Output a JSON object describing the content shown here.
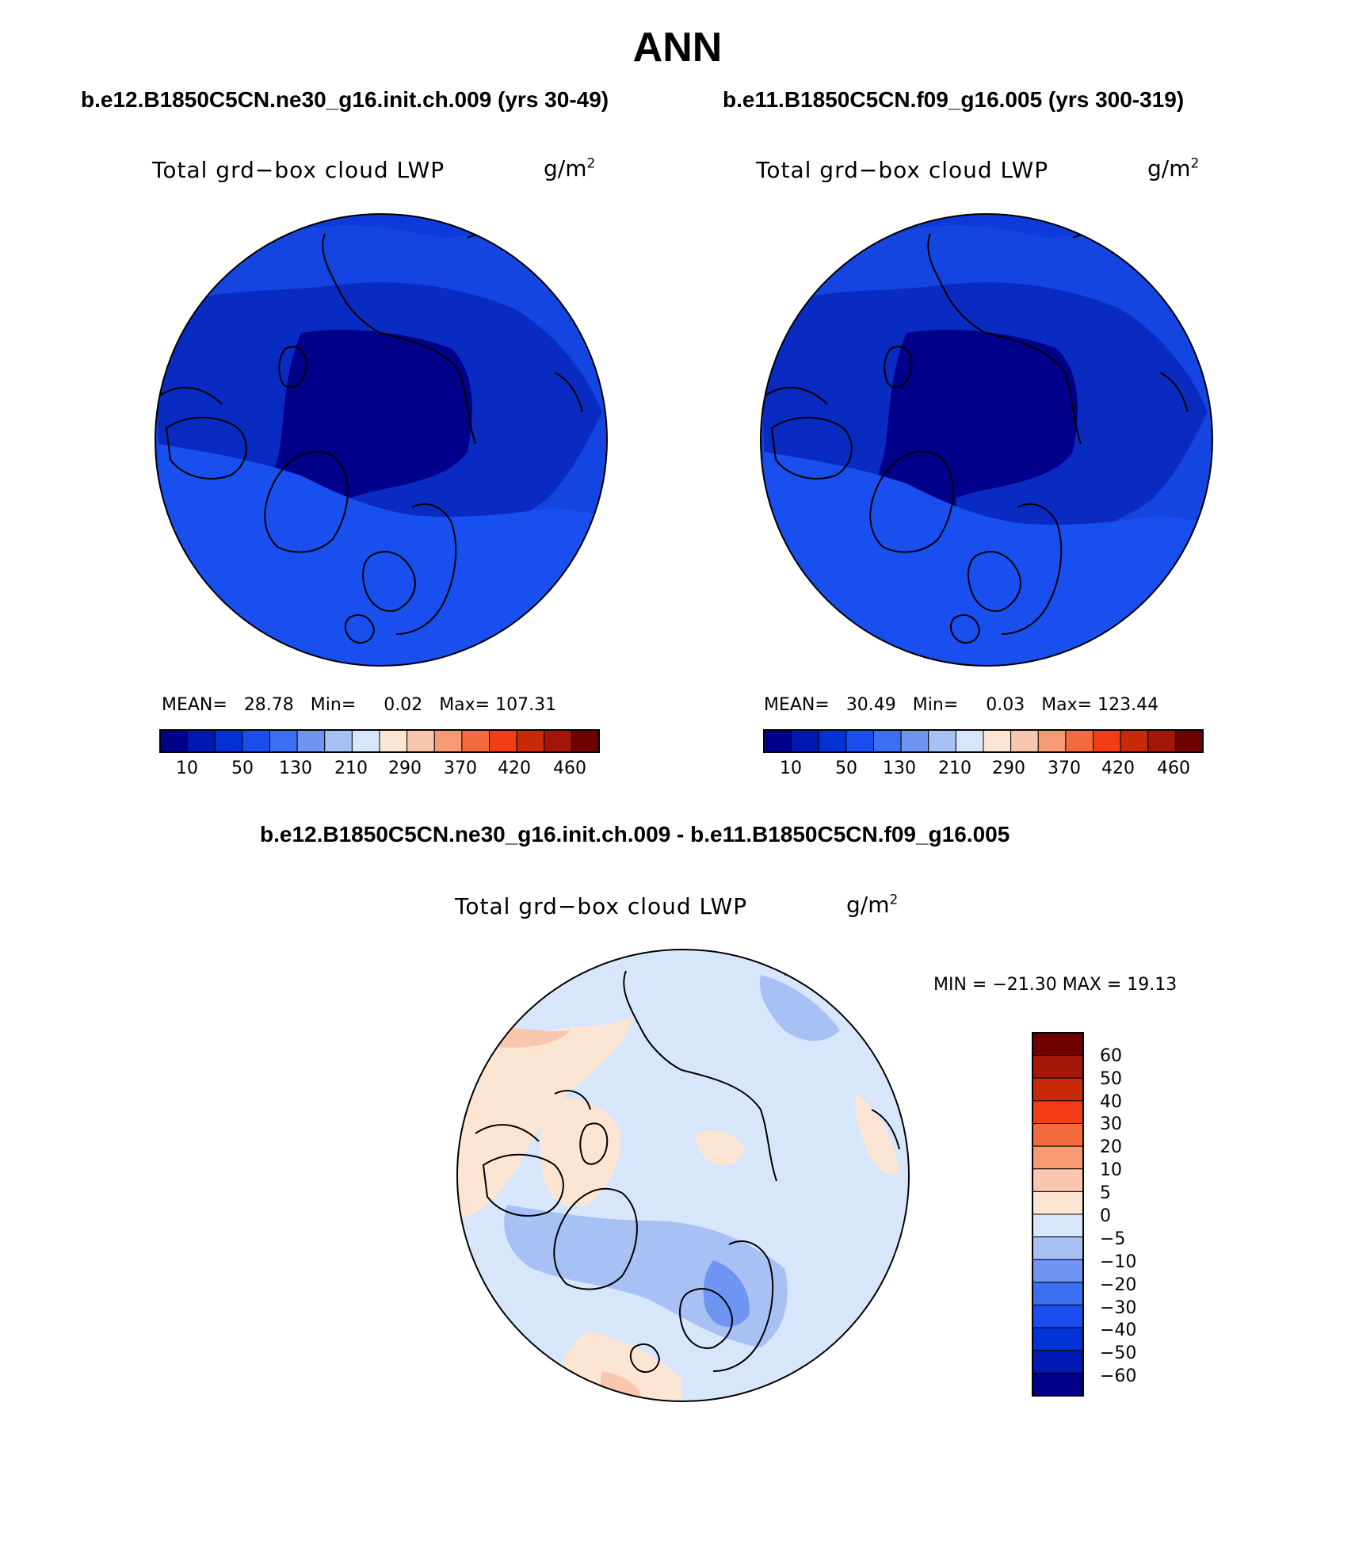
{
  "main_title": "ANN",
  "colors": {
    "land_outline": "#000000",
    "panel_a_palette": [
      "#00008a",
      "#0019b5",
      "#0032d6",
      "#1a4fef",
      "#3c6ef2",
      "#6f95f2",
      "#a8c1f5",
      "#d8e6fb",
      "#fde5d3",
      "#f9c7ad",
      "#f59a73",
      "#f46a3f",
      "#f23d16",
      "#c92a09",
      "#a31608",
      "#6e0000"
    ],
    "diff_palette": [
      "#00008a",
      "#0019b5",
      "#0032d6",
      "#1a4fef",
      "#3c6ef2",
      "#6f95f2",
      "#a8c1f5",
      "#d8e6fb",
      "#fde5d3",
      "#f9c7ad",
      "#f59a73",
      "#f46a3f",
      "#f23d16",
      "#c92a09",
      "#a31608",
      "#6e0000"
    ]
  },
  "chart_data": [
    {
      "type": "polar_map",
      "title": "b.e12.B1850C5CN.ne30_g16.init.ch.009 (yrs 30-49)",
      "variable": "Total grd−box cloud LWP",
      "units": "g/m",
      "units_exp": "2",
      "stats": {
        "mean_label": "MEAN=",
        "mean": "28.78",
        "min_label": "Min=",
        "min": "0.02",
        "max_label": "Max=",
        "max": "107.31"
      },
      "colorbar": {
        "orientation": "horizontal",
        "labels": [
          "10",
          "50",
          "130",
          "210",
          "290",
          "370",
          "420",
          "460"
        ]
      },
      "field_levels_present": [
        "10",
        "50"
      ]
    },
    {
      "type": "polar_map",
      "title": "b.e11.B1850C5CN.f09_g16.005 (yrs 300-319)",
      "variable": "Total grd−box cloud LWP",
      "units": "g/m",
      "units_exp": "2",
      "stats": {
        "mean_label": "MEAN=",
        "mean": "30.49",
        "min_label": "Min=",
        "min": "0.03",
        "max_label": "Max=",
        "max": "123.44"
      },
      "colorbar": {
        "orientation": "horizontal",
        "labels": [
          "10",
          "50",
          "130",
          "210",
          "290",
          "370",
          "420",
          "460"
        ]
      },
      "field_levels_present": [
        "10",
        "50"
      ]
    },
    {
      "type": "polar_map",
      "title": "b.e12.B1850C5CN.ne30_g16.init.ch.009 - b.e11.B1850C5CN.f09_g16.005",
      "variable": "Total grd−box cloud LWP",
      "units": "g/m",
      "units_exp": "2",
      "stats_line": "MIN = −21.30  MAX =   19.13",
      "colorbar": {
        "orientation": "vertical",
        "labels": [
          "60",
          "50",
          "40",
          "30",
          "20",
          "10",
          "5",
          "0",
          "−5",
          "−10",
          "−20",
          "−30",
          "−40",
          "−50",
          "−60"
        ]
      }
    }
  ]
}
